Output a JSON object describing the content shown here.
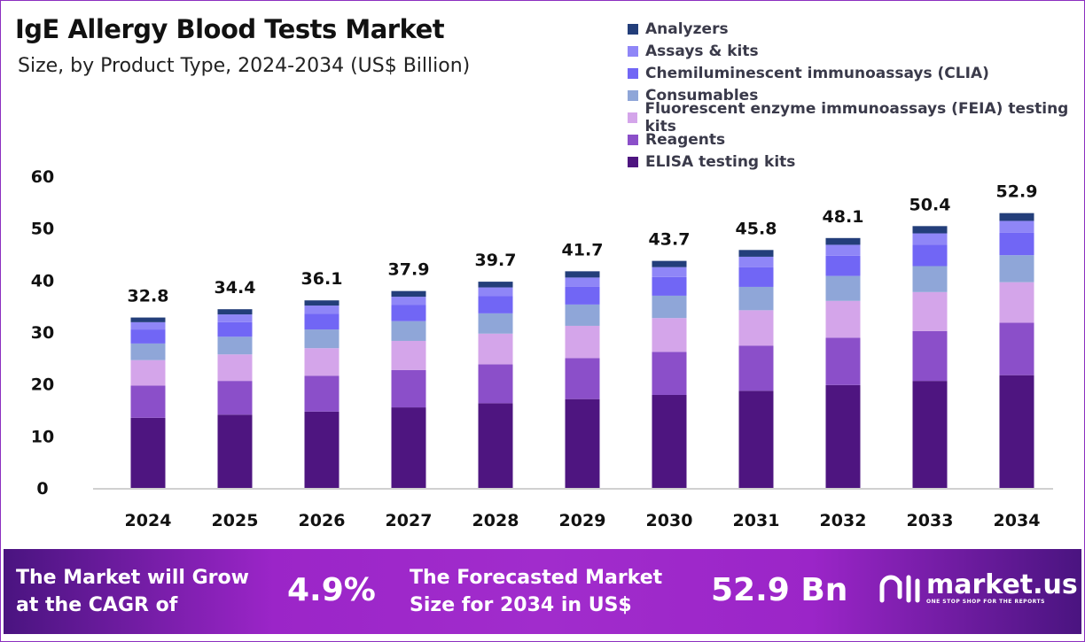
{
  "header": {
    "title": "IgE Allergy Blood Tests Market",
    "subtitle": "Size, by Product Type, 2024-2034 (US$ Billion)"
  },
  "chart_data": {
    "type": "bar",
    "stacked": true,
    "title": "IgE Allergy Blood Tests Market",
    "subtitle": "Size, by Product Type, 2024-2034 (US$ Billion)",
    "xlabel": "",
    "ylabel": "",
    "ylim": [
      0,
      60
    ],
    "yticks": [
      "0",
      "10",
      "20",
      "30",
      "40",
      "50",
      "60"
    ],
    "grid": false,
    "legend_position": "top-right",
    "categories": [
      "2024",
      "2025",
      "2026",
      "2027",
      "2028",
      "2029",
      "2030",
      "2031",
      "2032",
      "2033",
      "2034"
    ],
    "totals": [
      "32.8",
      "34.4",
      "36.1",
      "37.9",
      "39.7",
      "41.7",
      "43.7",
      "45.8",
      "48.1",
      "50.4",
      "52.9"
    ],
    "series": [
      {
        "name": "ELISA testing kits",
        "color": "#4e1580",
        "values": [
          13.5,
          14.1,
          14.7,
          15.5,
          16.3,
          17.1,
          17.9,
          18.7,
          19.8,
          20.6,
          21.7
        ]
      },
      {
        "name": "Reagents",
        "color": "#8b4fc9",
        "values": [
          6.2,
          6.5,
          6.9,
          7.2,
          7.5,
          7.9,
          8.3,
          8.7,
          9.1,
          9.6,
          10.1
        ]
      },
      {
        "name": "Fluorescent enzyme immunoassays (FEIA) testing kits",
        "color": "#d4a5ea",
        "values": [
          4.9,
          5.1,
          5.3,
          5.6,
          5.9,
          6.2,
          6.5,
          6.8,
          7.1,
          7.5,
          7.8
        ]
      },
      {
        "name": "Consumables",
        "color": "#8fa6d8",
        "values": [
          3.2,
          3.4,
          3.6,
          3.8,
          3.9,
          4.1,
          4.3,
          4.5,
          4.8,
          5.0,
          5.2
        ]
      },
      {
        "name": "Chemiluminescent immunoassays (CLIA)",
        "color": "#7166f5",
        "values": [
          2.7,
          2.8,
          3.0,
          3.1,
          3.3,
          3.4,
          3.6,
          3.8,
          3.9,
          4.1,
          4.3
        ]
      },
      {
        "name": "Assays & kits",
        "color": "#8f86f7",
        "values": [
          1.4,
          1.5,
          1.6,
          1.6,
          1.7,
          1.8,
          1.9,
          2.0,
          2.1,
          2.2,
          2.3
        ]
      },
      {
        "name": "Analyzers",
        "color": "#233e7a",
        "values": [
          0.9,
          1.0,
          1.0,
          1.1,
          1.1,
          1.2,
          1.2,
          1.3,
          1.3,
          1.4,
          1.5
        ]
      }
    ]
  },
  "banner": {
    "cagr_label": "The Market will Grow at the CAGR of",
    "cagr_line1": "The Market will Grow",
    "cagr_line2": "at the CAGR of",
    "cagr_value": "4.9%",
    "forecast_line1": "The Forecasted Market",
    "forecast_line2": "Size for 2034 in US$",
    "forecast_value": "52.9 Bn",
    "logo_name": "market.us",
    "logo_tagline": "ONE STOP SHOP FOR THE REPORTS"
  }
}
